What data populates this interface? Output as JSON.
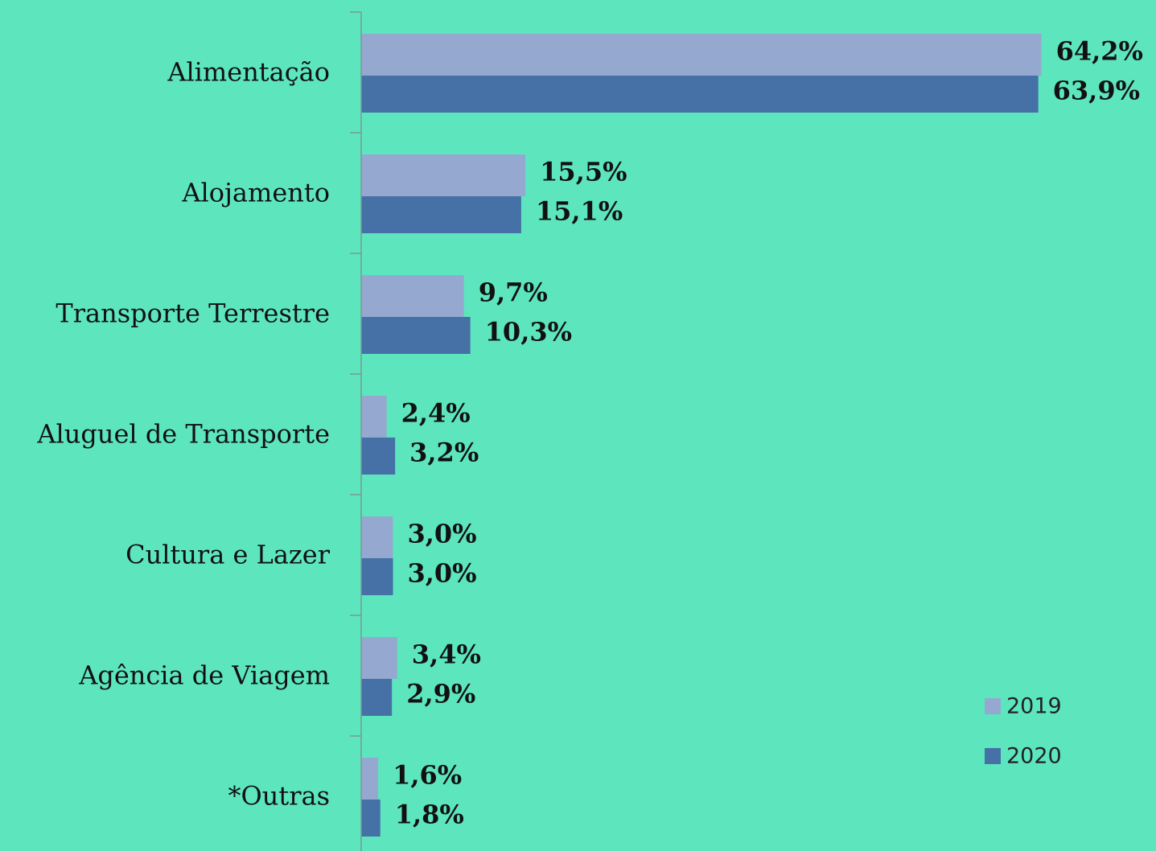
{
  "chart_data": {
    "type": "barh",
    "categories": [
      "Alimentação",
      "Alojamento",
      "Transporte Terrestre",
      "Aluguel de Transporte",
      "Cultura e Lazer",
      "Agência de Viagem",
      "*Outras"
    ],
    "series": [
      {
        "name": "2019",
        "color": "#95a9d0",
        "values": [
          64.2,
          15.5,
          9.7,
          2.4,
          3.0,
          3.4,
          1.6
        ],
        "value_labels": [
          "64,2%",
          "15,5%",
          "9,7%",
          "2,4%",
          "3,0%",
          "3,4%",
          "1,6%"
        ]
      },
      {
        "name": "2020",
        "color": "#4571a6",
        "values": [
          63.9,
          15.1,
          10.3,
          3.2,
          3.0,
          2.9,
          1.8
        ],
        "value_labels": [
          "63,9%",
          "15,1%",
          "10,3%",
          "3,2%",
          "3,0%",
          "2,9%",
          "1,8%"
        ]
      }
    ],
    "xlim": [
      0,
      70
    ],
    "legend": "lower right"
  }
}
